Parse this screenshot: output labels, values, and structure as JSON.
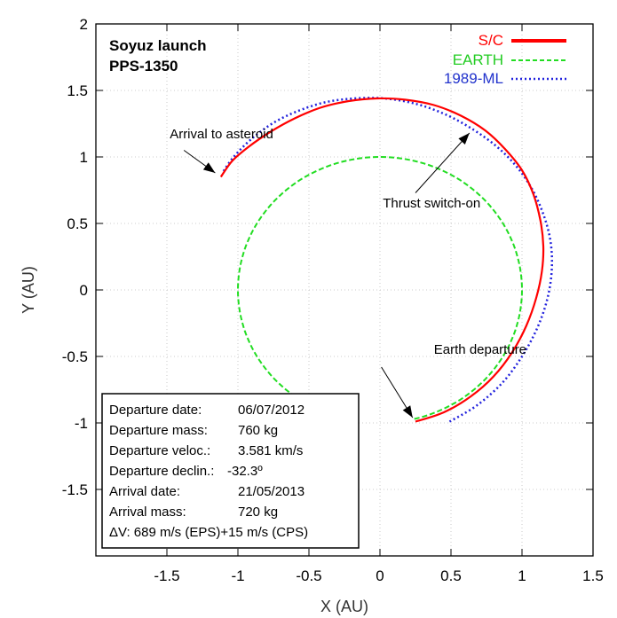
{
  "chart_data": {
    "type": "line",
    "title_lines": [
      "Soyuz launch",
      "PPS-1350"
    ],
    "xlabel": "X (AU)",
    "ylabel": "Y (AU)",
    "xlim": [
      -2,
      1.5
    ],
    "ylim": [
      -2,
      2
    ],
    "xticks": [
      -1.5,
      -1,
      -0.5,
      0,
      0.5,
      1,
      1.5
    ],
    "yticks": [
      -1.5,
      -1,
      -0.5,
      0,
      0.5,
      1,
      1.5,
      2
    ],
    "xtick_labels": [
      "-1.5",
      "-1",
      "-0.5",
      "0",
      "0.5",
      "1",
      "1.5"
    ],
    "ytick_labels": [
      "-1.5",
      "-1",
      "-0.5",
      "0",
      "0.5",
      "1",
      "1.5",
      "2"
    ],
    "grid": true,
    "legend_position": "top-right",
    "series": [
      {
        "name": "S/C",
        "color": "#ff0000",
        "style": "solid",
        "x": [
          0.25,
          0.45,
          0.64,
          0.8,
          0.93,
          1.03,
          1.1,
          1.14,
          1.15,
          1.13,
          1.08,
          1.0,
          0.88,
          0.74,
          0.57,
          0.38,
          0.18,
          -0.02,
          -0.22,
          -0.42,
          -0.6,
          -0.77,
          -0.92,
          -1.04,
          -1.12
        ],
        "y": [
          -0.99,
          -0.92,
          -0.8,
          -0.65,
          -0.47,
          -0.27,
          -0.06,
          0.14,
          0.33,
          0.52,
          0.72,
          0.9,
          1.06,
          1.2,
          1.31,
          1.39,
          1.43,
          1.44,
          1.42,
          1.37,
          1.29,
          1.19,
          1.08,
          0.97,
          0.85
        ]
      },
      {
        "name": "EARTH",
        "color": "#22dd22",
        "style": "dashed",
        "arc_center": [
          0,
          0
        ],
        "radius": 1.0,
        "theta_deg_range": [
          -76,
          234
        ]
      },
      {
        "name": "1989-ML",
        "color": "#2222dd",
        "style": "dotted",
        "x": [
          0.49,
          0.68,
          0.86,
          1.0,
          1.11,
          1.18,
          1.21,
          1.2,
          1.15,
          1.07,
          0.96,
          0.82,
          0.65,
          0.46,
          0.25,
          0.03,
          -0.18,
          -0.39,
          -0.59,
          -0.76,
          -0.91,
          -1.03,
          -1.11
        ],
        "y": [
          -0.99,
          -0.87,
          -0.7,
          -0.5,
          -0.28,
          -0.06,
          0.16,
          0.37,
          0.57,
          0.76,
          0.93,
          1.08,
          1.21,
          1.32,
          1.4,
          1.44,
          1.44,
          1.41,
          1.34,
          1.25,
          1.13,
          1.0,
          0.88
        ]
      }
    ],
    "annotations": [
      {
        "text": "Arrival to asteroid",
        "label_x": -1.48,
        "label_y": 1.14,
        "arrow_from": [
          -1.38,
          1.05
        ],
        "arrow_to": [
          -1.16,
          0.88
        ]
      },
      {
        "text": "Thrust switch-on",
        "label_x": 0.02,
        "label_y": 0.62,
        "arrow_from": [
          0.25,
          0.73
        ],
        "arrow_to": [
          0.63,
          1.18
        ]
      },
      {
        "text": "Earth departure",
        "label_x": 0.38,
        "label_y": -0.48,
        "arrow_from": [
          0.01,
          -0.58
        ],
        "arrow_to": [
          0.23,
          -0.96
        ]
      }
    ]
  },
  "info_box": {
    "rows": [
      {
        "label": "Departure date:",
        "value": "06/07/2012"
      },
      {
        "label": "Departure mass:",
        "value": "760 kg"
      },
      {
        "label": "Departure veloc.:",
        "value": "3.581 km/s"
      },
      {
        "label": "Departure declin.:",
        "value": "-32.3º"
      },
      {
        "label": "Arrival date:",
        "value": "21/05/2013"
      },
      {
        "label": "Arrival mass:",
        "value": "720 kg"
      }
    ],
    "delta_v": "ΔV: 689 m/s (EPS)+15 m/s (CPS)"
  }
}
